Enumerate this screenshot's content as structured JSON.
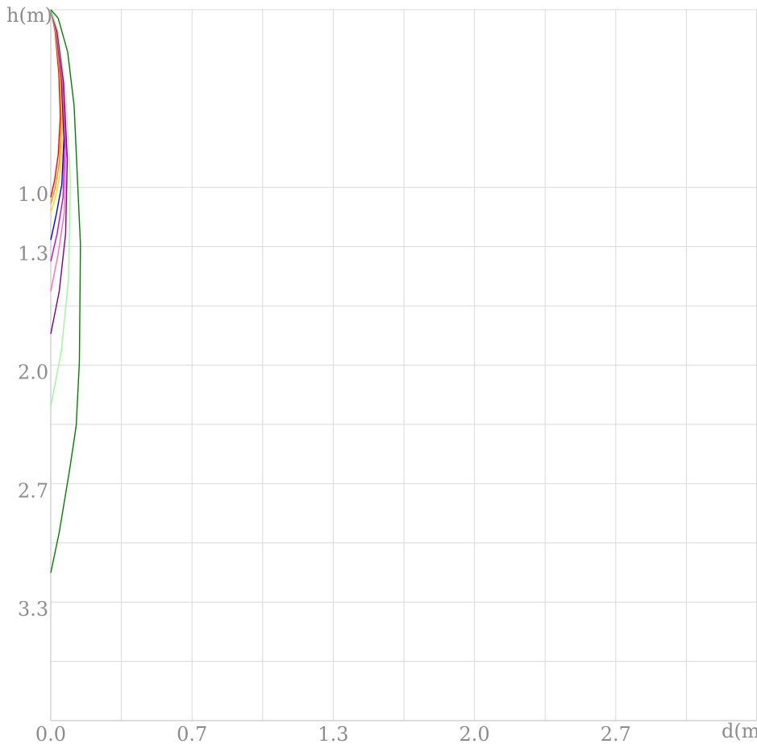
{
  "chart_data": {
    "type": "line",
    "title": "",
    "xlabel": "d(m)",
    "ylabel": "h(m)",
    "xlim": [
      0,
      3.3333
    ],
    "ylim": [
      0,
      3.3333
    ],
    "y_inverted": true,
    "grid": true,
    "legend": "none",
    "x_grid_values": [
      0,
      0.3333,
      0.6667,
      1.0,
      1.3333,
      1.6667,
      2.0,
      2.3333,
      2.6667,
      3.0,
      3.3333
    ],
    "x_tick_labels": [
      {
        "value": 0,
        "label": "0.0"
      },
      {
        "value": 0.6667,
        "label": "0.7"
      },
      {
        "value": 1.3333,
        "label": "1.3"
      },
      {
        "value": 2.0,
        "label": "2.0"
      },
      {
        "value": 2.6667,
        "label": "2.7"
      }
    ],
    "y_grid_values": [
      0,
      0.8333,
      1.1111,
      1.3889,
      1.6667,
      1.9444,
      2.2222,
      2.5,
      2.7778,
      3.0556,
      3.3333
    ],
    "y_tick_labels": [
      {
        "value": 0.8333,
        "label": "1.0"
      },
      {
        "value": 1.1111,
        "label": "1.3"
      },
      {
        "value": 1.6667,
        "label": "2.0"
      },
      {
        "value": 2.2222,
        "label": "2.7"
      },
      {
        "value": 2.7778,
        "label": "3.3"
      }
    ],
    "series": [
      {
        "color": "#ff0000",
        "points": [
          [
            0,
            0
          ],
          [
            0.02,
            0.1
          ],
          [
            0.038,
            0.3
          ],
          [
            0.045,
            0.5
          ],
          [
            0.035,
            0.68
          ],
          [
            0.018,
            0.8
          ],
          [
            0,
            0.88
          ]
        ]
      },
      {
        "color": "#ff8c00",
        "points": [
          [
            0,
            0
          ],
          [
            0.022,
            0.1
          ],
          [
            0.042,
            0.3
          ],
          [
            0.05,
            0.52
          ],
          [
            0.04,
            0.72
          ],
          [
            0.02,
            0.84
          ],
          [
            0,
            0.91
          ]
        ]
      },
      {
        "color": "#ffd700",
        "points": [
          [
            0,
            0
          ],
          [
            0.024,
            0.1
          ],
          [
            0.046,
            0.3
          ],
          [
            0.055,
            0.55
          ],
          [
            0.045,
            0.76
          ],
          [
            0.022,
            0.88
          ],
          [
            0,
            0.95
          ]
        ]
      },
      {
        "color": "#0000ff",
        "points": [
          [
            0,
            0
          ],
          [
            0.026,
            0.1
          ],
          [
            0.05,
            0.32
          ],
          [
            0.062,
            0.6
          ],
          [
            0.052,
            0.82
          ],
          [
            0.026,
            0.96
          ],
          [
            0,
            1.08
          ]
        ]
      },
      {
        "color": "#cc00cc",
        "points": [
          [
            0,
            0
          ],
          [
            0.027,
            0.1
          ],
          [
            0.052,
            0.32
          ],
          [
            0.066,
            0.62
          ],
          [
            0.058,
            0.88
          ],
          [
            0.03,
            1.05
          ],
          [
            0,
            1.18
          ]
        ]
      },
      {
        "color": "#ff69b4",
        "points": [
          [
            0,
            0
          ],
          [
            0.029,
            0.1
          ],
          [
            0.056,
            0.34
          ],
          [
            0.072,
            0.66
          ],
          [
            0.064,
            0.95
          ],
          [
            0.034,
            1.15
          ],
          [
            0,
            1.32
          ]
        ]
      },
      {
        "color": "#800080",
        "points": [
          [
            0,
            0
          ],
          [
            0.031,
            0.1
          ],
          [
            0.06,
            0.34
          ],
          [
            0.078,
            0.7
          ],
          [
            0.07,
            1.05
          ],
          [
            0.04,
            1.32
          ],
          [
            0,
            1.52
          ]
        ]
      },
      {
        "color": "#98fb98",
        "points": [
          [
            0,
            0
          ],
          [
            0.034,
            0.1
          ],
          [
            0.07,
            0.38
          ],
          [
            0.092,
            0.8
          ],
          [
            0.085,
            1.25
          ],
          [
            0.05,
            1.6
          ],
          [
            0,
            1.86
          ]
        ]
      },
      {
        "color": "#008000",
        "points": [
          [
            0,
            0
          ],
          [
            0.035,
            0.04
          ],
          [
            0.08,
            0.2
          ],
          [
            0.11,
            0.45
          ],
          [
            0.14,
            1.1
          ],
          [
            0.135,
            1.65
          ],
          [
            0.12,
            1.95
          ],
          [
            0.09,
            2.15
          ],
          [
            0.04,
            2.45
          ],
          [
            0,
            2.64
          ]
        ]
      }
    ]
  }
}
